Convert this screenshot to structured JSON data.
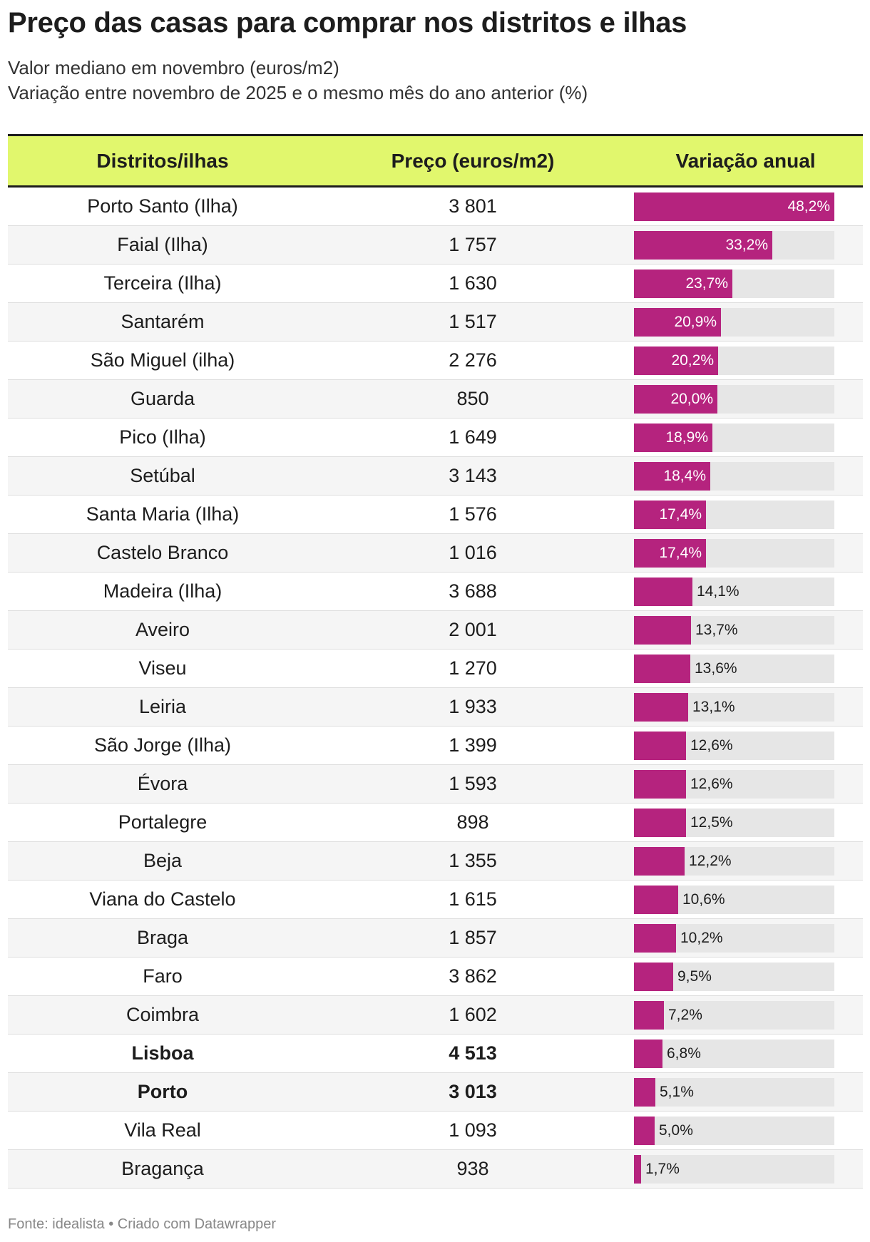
{
  "title": "Preço das casas para comprar nos distritos e ilhas",
  "subtitle_line1": "Valor mediano em novembro (euros/m2)",
  "subtitle_line2": "Variação entre novembro de 2025 e o mesmo mês do ano anterior (%)",
  "footer": "Fonte: idealista • Criado com Datawrapper",
  "colors": {
    "header_bg": "#e1f76d",
    "bar": "#b5237e",
    "track": "#e6e6e6"
  },
  "chart_data": {
    "type": "table",
    "columns": [
      "Distritos/ilhas",
      "Preço (euros/m2)",
      "Variação anual"
    ],
    "bar_max": 48.2,
    "rows": [
      {
        "name": "Porto Santo (Ilha)",
        "price": "3 801",
        "variation": 48.2,
        "variation_label": "48,2%",
        "bold": false
      },
      {
        "name": "Faial (Ilha)",
        "price": "1 757",
        "variation": 33.2,
        "variation_label": "33,2%",
        "bold": false
      },
      {
        "name": "Terceira (Ilha)",
        "price": "1 630",
        "variation": 23.7,
        "variation_label": "23,7%",
        "bold": false
      },
      {
        "name": "Santarém",
        "price": "1 517",
        "variation": 20.9,
        "variation_label": "20,9%",
        "bold": false
      },
      {
        "name": "São Miguel (ilha)",
        "price": "2 276",
        "variation": 20.2,
        "variation_label": "20,2%",
        "bold": false
      },
      {
        "name": "Guarda",
        "price": "850",
        "variation": 20.0,
        "variation_label": "20,0%",
        "bold": false
      },
      {
        "name": "Pico (Ilha)",
        "price": "1 649",
        "variation": 18.9,
        "variation_label": "18,9%",
        "bold": false
      },
      {
        "name": "Setúbal",
        "price": "3 143",
        "variation": 18.4,
        "variation_label": "18,4%",
        "bold": false
      },
      {
        "name": "Santa Maria (Ilha)",
        "price": "1 576",
        "variation": 17.4,
        "variation_label": "17,4%",
        "bold": false
      },
      {
        "name": "Castelo Branco",
        "price": "1 016",
        "variation": 17.4,
        "variation_label": "17,4%",
        "bold": false
      },
      {
        "name": "Madeira (Ilha)",
        "price": "3 688",
        "variation": 14.1,
        "variation_label": "14,1%",
        "bold": false
      },
      {
        "name": "Aveiro",
        "price": "2 001",
        "variation": 13.7,
        "variation_label": "13,7%",
        "bold": false
      },
      {
        "name": "Viseu",
        "price": "1 270",
        "variation": 13.6,
        "variation_label": "13,6%",
        "bold": false
      },
      {
        "name": "Leiria",
        "price": "1 933",
        "variation": 13.1,
        "variation_label": "13,1%",
        "bold": false
      },
      {
        "name": "São Jorge (Ilha)",
        "price": "1 399",
        "variation": 12.6,
        "variation_label": "12,6%",
        "bold": false
      },
      {
        "name": "Évora",
        "price": "1 593",
        "variation": 12.6,
        "variation_label": "12,6%",
        "bold": false
      },
      {
        "name": "Portalegre",
        "price": "898",
        "variation": 12.5,
        "variation_label": "12,5%",
        "bold": false
      },
      {
        "name": "Beja",
        "price": "1 355",
        "variation": 12.2,
        "variation_label": "12,2%",
        "bold": false
      },
      {
        "name": "Viana do Castelo",
        "price": "1 615",
        "variation": 10.6,
        "variation_label": "10,6%",
        "bold": false
      },
      {
        "name": "Braga",
        "price": "1 857",
        "variation": 10.2,
        "variation_label": "10,2%",
        "bold": false
      },
      {
        "name": "Faro",
        "price": "3 862",
        "variation": 9.5,
        "variation_label": "9,5%",
        "bold": false
      },
      {
        "name": "Coimbra",
        "price": "1 602",
        "variation": 7.2,
        "variation_label": "7,2%",
        "bold": false
      },
      {
        "name": "Lisboa",
        "price": "4 513",
        "variation": 6.8,
        "variation_label": "6,8%",
        "bold": true
      },
      {
        "name": "Porto",
        "price": "3 013",
        "variation": 5.1,
        "variation_label": "5,1%",
        "bold": true
      },
      {
        "name": "Vila Real",
        "price": "1 093",
        "variation": 5.0,
        "variation_label": "5,0%",
        "bold": false
      },
      {
        "name": "Bragança",
        "price": "938",
        "variation": 1.7,
        "variation_label": "1,7%",
        "bold": false
      }
    ]
  }
}
